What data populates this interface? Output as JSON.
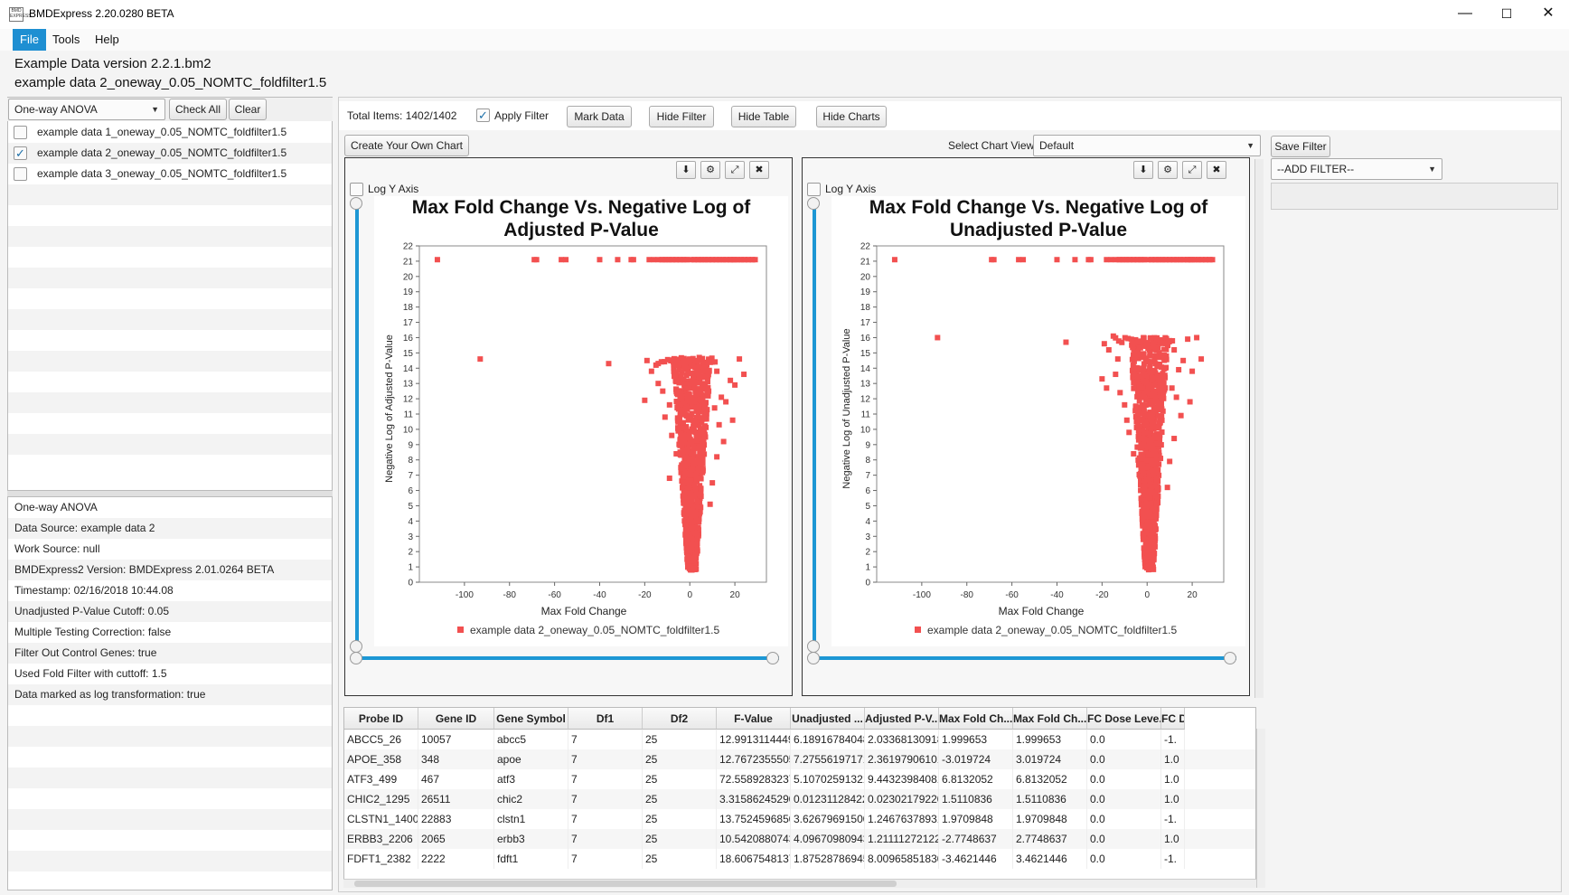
{
  "window": {
    "title": "BMDExpress 2.20.0280 BETA",
    "logo_text": "BMD EXPRESS",
    "minimize_symbol": "—",
    "maximize_symbol": "☐",
    "close_symbol": "✕"
  },
  "menu": {
    "items": [
      "File",
      "Tools",
      "Help"
    ]
  },
  "header": {
    "project_line": "Example Data version 2.2.1.bm2",
    "dataset_line": "example data 2_oneway_0.05_NOMTC_foldfilter1.5"
  },
  "left_panel": {
    "analysis_type": "One-way ANOVA",
    "check_all_label": "Check All",
    "clear_label": "Clear",
    "datasets": [
      {
        "label": "example data 1_oneway_0.05_NOMTC_foldfilter1.5",
        "checked": false
      },
      {
        "label": "example data 2_oneway_0.05_NOMTC_foldfilter1.5",
        "checked": true
      },
      {
        "label": "example data 3_oneway_0.05_NOMTC_foldfilter1.5",
        "checked": false
      }
    ],
    "info": [
      "One-way ANOVA",
      "Data Source: example data 2",
      "Work Source: null",
      "BMDExpress2 Version: BMDExpress 2.01.0264 BETA",
      "Timestamp: 02/16/2018 10:44.08",
      "Unadjusted P-Value Cutoff: 0.05",
      "Multiple Testing Correction: false",
      "Filter Out Control Genes: true",
      "Used Fold Filter with cuttoff: 1.5",
      "Data marked as log transformation: true"
    ]
  },
  "toolbar": {
    "total_items": "Total Items: 1402/1402",
    "apply_filter_label": "Apply Filter",
    "apply_filter_checked": true,
    "mark_data_label": "Mark Data",
    "hide_filter_label": "Hide Filter",
    "hide_table_label": "Hide Table",
    "hide_charts_label": "Hide Charts"
  },
  "chart_toolbar": {
    "create_chart_label": "Create Your Own Chart",
    "select_view_label": "Select Chart View",
    "select_view_value": "Default"
  },
  "filter_panel": {
    "save_filter_label": "Save Filter",
    "add_filter_value": "--ADD FILTER--"
  },
  "chart_panel_icons": [
    "download-icon",
    "gear-icon",
    "expand-icon",
    "close-icon"
  ],
  "chart_common": {
    "log_y_label": "Log Y Axis",
    "legend_label": "example data 2_oneway_0.05_NOMTC_foldfilter1.5",
    "y_ticks": [
      "0",
      "1",
      "2",
      "3",
      "4",
      "5",
      "6",
      "7",
      "8",
      "9",
      "10",
      "11",
      "12",
      "13",
      "14",
      "15",
      "16",
      "17",
      "18",
      "19",
      "20",
      "21",
      "22"
    ],
    "x_ticks": [
      "-100",
      "-80",
      "-60",
      "-40",
      "-20",
      "0",
      "20"
    ],
    "series_color": "#f25050"
  },
  "chart_data": [
    {
      "type": "scatter",
      "title_line1": "Max Fold Change Vs. Negative Log of",
      "title_line2": "Adjusted P-Value",
      "xlabel": "Max Fold Change",
      "ylabel": "Negative Log of Adjusted P-Value",
      "xlim": [
        -120,
        34
      ],
      "ylim": [
        0,
        22
      ],
      "grid": false,
      "legend": "bottom",
      "series": [
        {
          "name": "example data 2_oneway_0.05_NOMTC_foldfilter1.5",
          "cap_y": 21.1,
          "cap_x": [
            -112,
            -69,
            -68,
            -57,
            -55,
            -40,
            -32,
            -26,
            -25,
            -18,
            -16,
            -12,
            -10,
            -8,
            -6,
            -4,
            -2,
            2,
            4,
            6,
            8,
            10,
            12,
            14,
            16,
            18,
            19,
            20,
            22,
            24,
            26,
            28,
            29
          ],
          "plateau_y": 14.7,
          "scattered": [
            [
              -93,
              14.6
            ],
            [
              -36,
              14.3
            ],
            [
              -19,
              14.5
            ],
            [
              -17,
              13.8
            ],
            [
              -15,
              14.2
            ],
            [
              -12,
              12.5
            ],
            [
              -14,
              13.0
            ],
            [
              -9,
              11.6
            ],
            [
              -20,
              11.9
            ],
            [
              -11,
              10.8
            ],
            [
              -8,
              9.6
            ],
            [
              -9,
              6.8
            ],
            [
              -6,
              8.4
            ],
            [
              10,
              14.4
            ],
            [
              12,
              13.8
            ],
            [
              14,
              12.1
            ],
            [
              11,
              11.4
            ],
            [
              16,
              11.8
            ],
            [
              13,
              10.3
            ],
            [
              18,
              13.2
            ],
            [
              22,
              14.6
            ],
            [
              24,
              13.6
            ],
            [
              20,
              12.9
            ],
            [
              19,
              10.6
            ],
            [
              15,
              9.2
            ],
            [
              12,
              8.2
            ],
            [
              10,
              6.5
            ],
            [
              9,
              5.1
            ]
          ],
          "core": "dense spread of points within roughly ±12 fold change between y≈0.8 and y≈14.7"
        }
      ]
    },
    {
      "type": "scatter",
      "title_line1": "Max Fold Change Vs. Negative Log of",
      "title_line2": "Unadjusted P-Value",
      "xlabel": "Max Fold Change",
      "ylabel": "Negative Log of Unadjusted P-Value",
      "xlim": [
        -120,
        34
      ],
      "ylim": [
        0,
        22
      ],
      "grid": false,
      "legend": "bottom",
      "series": [
        {
          "name": "example data 2_oneway_0.05_NOMTC_foldfilter1.5",
          "cap_y": 21.1,
          "cap_x": [
            -112,
            -69,
            -68,
            -57,
            -55,
            -40,
            -32,
            -26,
            -25,
            -18,
            -16,
            -12,
            -10,
            -8,
            -6,
            -4,
            -2,
            2,
            4,
            6,
            8,
            10,
            12,
            14,
            16,
            18,
            19,
            20,
            22,
            24,
            26,
            28,
            29
          ],
          "plateau_y": 16.0,
          "scattered": [
            [
              -93,
              16.0
            ],
            [
              -36,
              15.7
            ],
            [
              -19,
              15.6
            ],
            [
              -17,
              15.2
            ],
            [
              -15,
              16.1
            ],
            [
              -13,
              14.6
            ],
            [
              -20,
              13.3
            ],
            [
              -18,
              12.7
            ],
            [
              -14,
              13.6
            ],
            [
              -12,
              12.4
            ],
            [
              -10,
              11.6
            ],
            [
              -9,
              10.6
            ],
            [
              -8,
              9.8
            ],
            [
              -6,
              8.4
            ],
            [
              10,
              15.8
            ],
            [
              12,
              15.2
            ],
            [
              14,
              13.9
            ],
            [
              11,
              12.7
            ],
            [
              16,
              14.5
            ],
            [
              13,
              12.1
            ],
            [
              18,
              15.9
            ],
            [
              22,
              16.0
            ],
            [
              24,
              14.6
            ],
            [
              20,
              13.8
            ],
            [
              19,
              11.8
            ],
            [
              15,
              10.9
            ],
            [
              12,
              9.4
            ],
            [
              10,
              7.9
            ],
            [
              9,
              6.2
            ]
          ],
          "core": "dense spread of points within roughly ±12 fold change between y≈0.8 and y≈16"
        }
      ]
    }
  ],
  "table": {
    "columns": [
      "Probe ID",
      "Gene ID",
      "Gene Symbol",
      "Df1",
      "Df2",
      "F-Value",
      "Unadjusted ...",
      "Adjusted P-V...",
      "Max Fold Ch...",
      "Max Fold Ch...",
      "FC Dose Leve...",
      "FC D"
    ],
    "rows": [
      [
        "ABCC5_26",
        "10057",
        "abcc5",
        "7",
        "25",
        "12.9913114449...",
        "6.18916784048...",
        "2.03368130918...",
        "1.999653",
        "1.999653",
        "0.0",
        "-1."
      ],
      [
        "APOE_358",
        "348",
        "apoe",
        "7",
        "25",
        "12.7672355505...",
        "7.27556197171...",
        "2.36197906101...",
        "-3.019724",
        "3.019724",
        "0.0",
        "1.0"
      ],
      [
        "ATF3_499",
        "467",
        "atf3",
        "7",
        "25",
        "72.5589283237...",
        "5.10702591321...",
        "9.44323984081...",
        "6.8132052",
        "6.8132052",
        "0.0",
        "1.0"
      ],
      [
        "CHIC2_1295",
        "26511",
        "chic2",
        "7",
        "25",
        "3.31586245290...",
        "0.01231128422...",
        "0.02302179220...",
        "1.5110836",
        "1.5110836",
        "0.0",
        "1.0"
      ],
      [
        "CLSTN1_1400",
        "22883",
        "clstn1",
        "7",
        "25",
        "13.7524596850...",
        "3.62679691500...",
        "1.24676378931...",
        "1.9709848",
        "1.9709848",
        "0.0",
        "-1."
      ],
      [
        "ERBB3_2206",
        "2065",
        "erbb3",
        "7",
        "25",
        "10.5420880743...",
        "4.09670980943...",
        "1.21111272122...",
        "-2.7748637",
        "2.7748637",
        "0.0",
        "1.0"
      ],
      [
        "FDFT1_2382",
        "2222",
        "fdft1",
        "7",
        "25",
        "18.6067548137...",
        "1.87528786945...",
        "8.00965851830...",
        "-3.4621446",
        "3.4621446",
        "0.0",
        "-1."
      ]
    ]
  }
}
